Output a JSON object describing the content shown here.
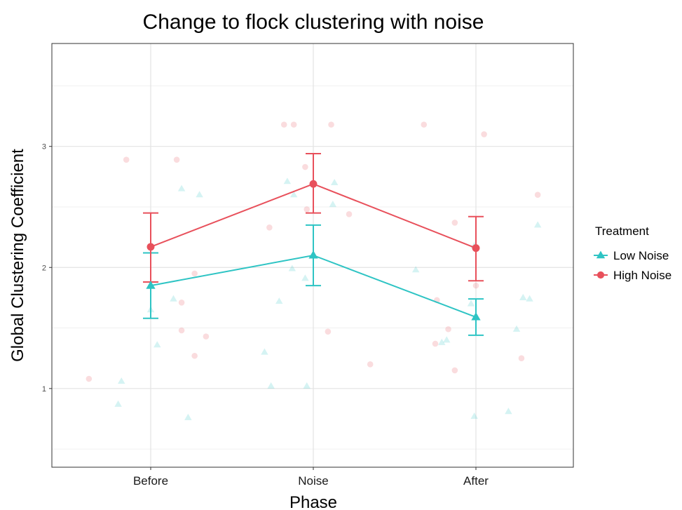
{
  "chart_data": {
    "type": "scatter",
    "title": "Change to flock clustering with noise",
    "xlabel": "Phase",
    "ylabel": "Global Clustering Coefficient",
    "categories": [
      "Before",
      "Noise",
      "After"
    ],
    "ylim": [
      0.35,
      3.85
    ],
    "yticks": [
      "1",
      "2",
      "3"
    ],
    "grid": true,
    "legend": {
      "title": "Treatment",
      "position": "right"
    },
    "series": [
      {
        "name": "Low Noise",
        "color": "#2EC4C4",
        "marker": "triangle",
        "means": [
          1.85,
          2.1,
          1.59
        ],
        "error_low": [
          1.58,
          1.85,
          1.44
        ],
        "error_high": [
          2.12,
          2.35,
          1.74
        ],
        "raw_points": [
          {
            "x": "Before",
            "y": 1.06,
            "jitter": -0.18
          },
          {
            "x": "Before",
            "y": 0.87,
            "jitter": -0.2
          },
          {
            "x": "Before",
            "y": 1.36,
            "jitter": 0.04
          },
          {
            "x": "Before",
            "y": 1.65,
            "jitter": 0.0
          },
          {
            "x": "Before",
            "y": 1.74,
            "jitter": 0.14
          },
          {
            "x": "Before",
            "y": 2.65,
            "jitter": 0.19
          },
          {
            "x": "Before",
            "y": 2.6,
            "jitter": 0.3
          },
          {
            "x": "Before",
            "y": 0.76,
            "jitter": 0.23
          },
          {
            "x": "Noise",
            "y": 1.3,
            "jitter": -0.3
          },
          {
            "x": "Noise",
            "y": 1.02,
            "jitter": -0.26
          },
          {
            "x": "Noise",
            "y": 1.72,
            "jitter": -0.21
          },
          {
            "x": "Noise",
            "y": 1.99,
            "jitter": -0.13
          },
          {
            "x": "Noise",
            "y": 2.71,
            "jitter": -0.16
          },
          {
            "x": "Noise",
            "y": 2.6,
            "jitter": -0.12
          },
          {
            "x": "Noise",
            "y": 1.91,
            "jitter": -0.05
          },
          {
            "x": "Noise",
            "y": 1.02,
            "jitter": -0.04
          },
          {
            "x": "Noise",
            "y": 2.7,
            "jitter": 0.13
          },
          {
            "x": "Noise",
            "y": 2.52,
            "jitter": 0.12
          },
          {
            "x": "After",
            "y": 1.98,
            "jitter": -0.37
          },
          {
            "x": "After",
            "y": 1.38,
            "jitter": -0.21
          },
          {
            "x": "After",
            "y": 1.4,
            "jitter": -0.18
          },
          {
            "x": "After",
            "y": 2.18,
            "jitter": -0.01
          },
          {
            "x": "After",
            "y": 1.7,
            "jitter": -0.03
          },
          {
            "x": "After",
            "y": 0.77,
            "jitter": -0.01
          },
          {
            "x": "After",
            "y": 0.81,
            "jitter": 0.2
          },
          {
            "x": "After",
            "y": 1.49,
            "jitter": 0.25
          },
          {
            "x": "After",
            "y": 1.75,
            "jitter": 0.29
          },
          {
            "x": "After",
            "y": 1.74,
            "jitter": 0.33
          },
          {
            "x": "After",
            "y": 2.35,
            "jitter": 0.38
          }
        ]
      },
      {
        "name": "High Noise",
        "color": "#E8505B",
        "marker": "circle",
        "means": [
          2.17,
          2.69,
          2.16
        ],
        "error_low": [
          1.88,
          2.45,
          1.89
        ],
        "error_high": [
          2.45,
          2.94,
          2.42
        ],
        "raw_points": [
          {
            "x": "Before",
            "y": 1.08,
            "jitter": -0.38
          },
          {
            "x": "Before",
            "y": 2.89,
            "jitter": -0.15
          },
          {
            "x": "Before",
            "y": 2.89,
            "jitter": 0.16
          },
          {
            "x": "Before",
            "y": 1.71,
            "jitter": 0.19
          },
          {
            "x": "Before",
            "y": 1.48,
            "jitter": 0.19
          },
          {
            "x": "Before",
            "y": 1.95,
            "jitter": 0.27
          },
          {
            "x": "Before",
            "y": 1.27,
            "jitter": 0.27
          },
          {
            "x": "Before",
            "y": 1.43,
            "jitter": 0.34
          },
          {
            "x": "Noise",
            "y": 3.18,
            "jitter": -0.18
          },
          {
            "x": "Noise",
            "y": 3.18,
            "jitter": -0.12
          },
          {
            "x": "Noise",
            "y": 2.33,
            "jitter": -0.27
          },
          {
            "x": "Noise",
            "y": 2.83,
            "jitter": -0.05
          },
          {
            "x": "Noise",
            "y": 2.48,
            "jitter": -0.04
          },
          {
            "x": "Noise",
            "y": 3.18,
            "jitter": 0.11
          },
          {
            "x": "Noise",
            "y": 2.44,
            "jitter": 0.22
          },
          {
            "x": "Noise",
            "y": 1.47,
            "jitter": 0.09
          },
          {
            "x": "Noise",
            "y": 1.2,
            "jitter": 0.35
          },
          {
            "x": "After",
            "y": 3.18,
            "jitter": -0.32
          },
          {
            "x": "After",
            "y": 1.73,
            "jitter": -0.24
          },
          {
            "x": "After",
            "y": 1.37,
            "jitter": -0.25
          },
          {
            "x": "After",
            "y": 1.49,
            "jitter": -0.17
          },
          {
            "x": "After",
            "y": 2.37,
            "jitter": -0.13
          },
          {
            "x": "After",
            "y": 1.15,
            "jitter": -0.13
          },
          {
            "x": "After",
            "y": 3.1,
            "jitter": 0.05
          },
          {
            "x": "After",
            "y": 1.85,
            "jitter": 0.0
          },
          {
            "x": "After",
            "y": 1.25,
            "jitter": 0.28
          },
          {
            "x": "After",
            "y": 2.6,
            "jitter": 0.38
          }
        ]
      }
    ]
  }
}
